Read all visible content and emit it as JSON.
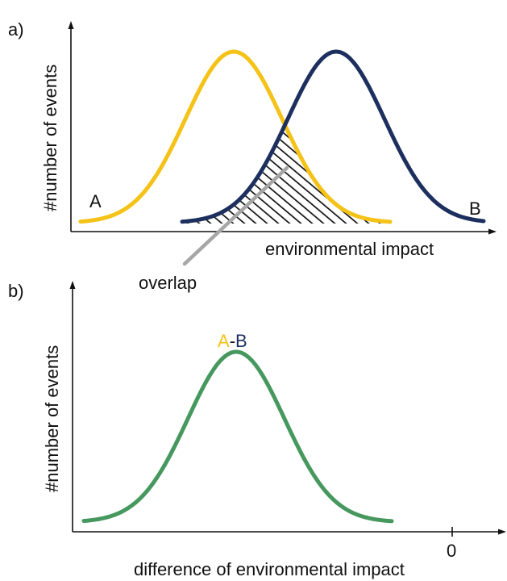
{
  "panel_a": {
    "label": "a)",
    "ylabel": "#number of events",
    "xlabel": "environmental impact",
    "curve_a_label": "A",
    "curve_b_label": "B",
    "overlap_label": "overlap"
  },
  "panel_b": {
    "label": "b)",
    "ylabel": "#number of events",
    "xlabel": "difference of environmental impact",
    "zero_tick_label": "0",
    "curve_label_a": "A",
    "curve_label_dash": "-",
    "curve_label_b": "B"
  },
  "colors": {
    "curve_a": "#F5C217",
    "curve_b": "#1C2F5E",
    "difference": "#46985E",
    "overlap_pointer": "#A6A6A6",
    "axis": "#111111",
    "hatch": "#111111"
  }
}
